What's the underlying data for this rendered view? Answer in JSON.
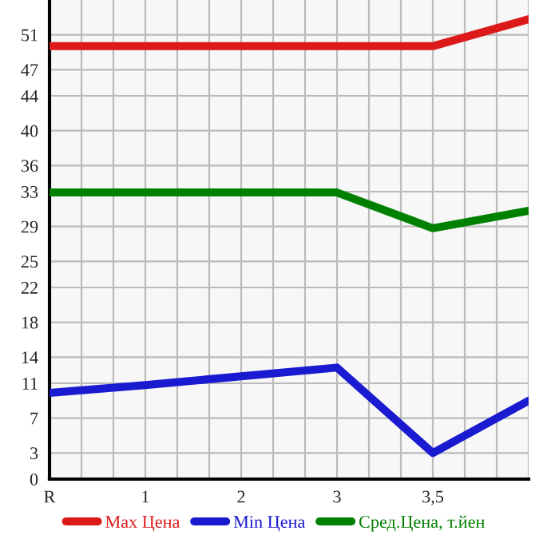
{
  "chart_data": {
    "type": "line",
    "categories": [
      "R",
      "1",
      "2",
      "3",
      "3,5",
      null
    ],
    "series": [
      {
        "name": "Max Цена",
        "color": "#dd1a1a",
        "values": [
          49.7,
          49.7,
          49.7,
          49.7,
          49.7,
          52.8
        ]
      },
      {
        "name": "Min Цена",
        "color": "#1a1ad0",
        "values": [
          9.9,
          10.8,
          11.8,
          12.8,
          3.0,
          9.0
        ]
      },
      {
        "name": "Сред.Цена, т.йен",
        "color": "#008000",
        "values": [
          32.9,
          32.9,
          32.9,
          32.9,
          28.8,
          30.8
        ]
      }
    ],
    "ylim": [
      0,
      55
    ],
    "yticks": [
      0,
      3,
      7,
      11,
      14,
      18,
      22,
      25,
      29,
      33,
      36,
      40,
      44,
      47,
      51
    ],
    "grid": true,
    "legend": "bottom",
    "marker": "none",
    "line_style": "solid"
  }
}
